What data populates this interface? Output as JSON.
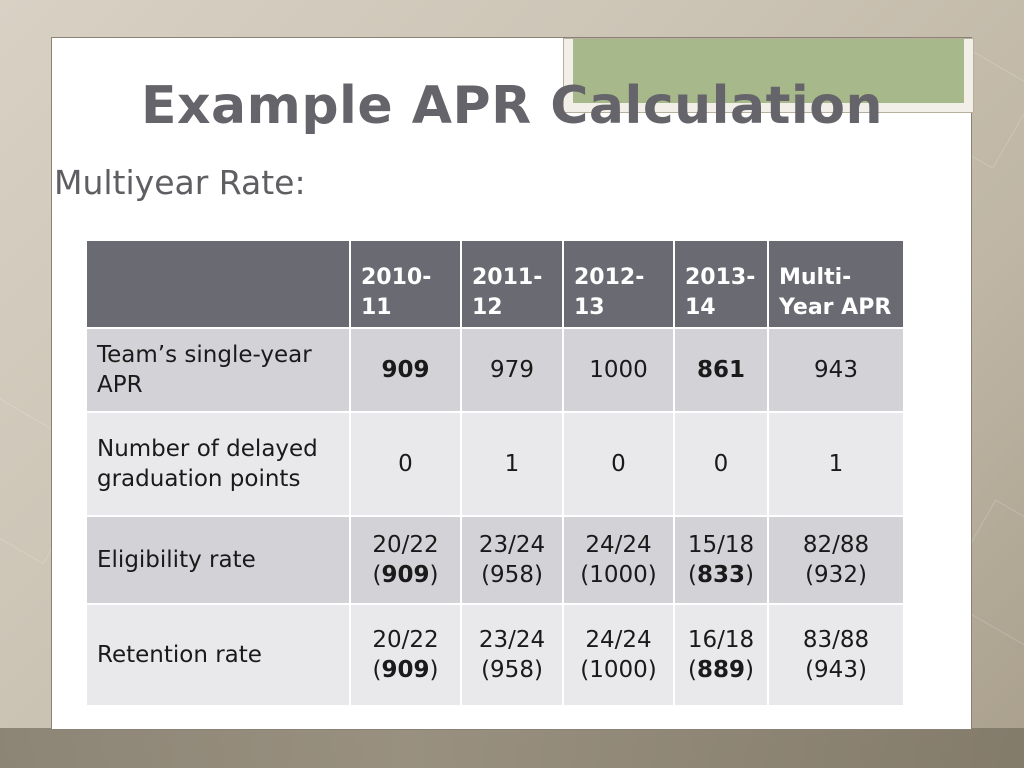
{
  "slide": {
    "title": "Example APR Calculation",
    "subtitle": "Multiyear Rate:"
  },
  "table": {
    "headers": [
      "",
      "2010-\n11",
      "2011-\n12",
      "2012-\n13",
      "2013-\n14",
      "Multi-\nYear APR"
    ],
    "rows": [
      {
        "label": "Team’s single-year APR",
        "cells": [
          {
            "main": "909",
            "bold": true
          },
          {
            "main": "979"
          },
          {
            "main": "1000"
          },
          {
            "main": "861",
            "bold": true
          },
          {
            "main": "943"
          }
        ]
      },
      {
        "label": "Number of delayed graduation points",
        "cells": [
          {
            "main": "0"
          },
          {
            "main": "1"
          },
          {
            "main": "0"
          },
          {
            "main": "0"
          },
          {
            "main": "1"
          }
        ]
      },
      {
        "label": "Eligibility rate",
        "cells": [
          {
            "main": "20/22",
            "paren": "909",
            "bold": true
          },
          {
            "main": "23/24",
            "paren": "958"
          },
          {
            "main": "24/24",
            "paren": "1000"
          },
          {
            "main": "15/18",
            "paren": "833",
            "bold": true
          },
          {
            "main": "82/88",
            "paren": "932"
          }
        ]
      },
      {
        "label": "Retention rate",
        "cells": [
          {
            "main": "20/22",
            "paren": "909",
            "bold": true
          },
          {
            "main": "23/24",
            "paren": "958"
          },
          {
            "main": "24/24",
            "paren": "1000"
          },
          {
            "main": "16/18",
            "paren": "889",
            "bold": true
          },
          {
            "main": "83/88",
            "paren": "943"
          }
        ]
      }
    ]
  },
  "colors": {
    "header_bg": "#6a6a72",
    "row_dark": "#d3d3d7",
    "row_light": "#e9e9ec",
    "accent_green": "#a7b98a"
  }
}
